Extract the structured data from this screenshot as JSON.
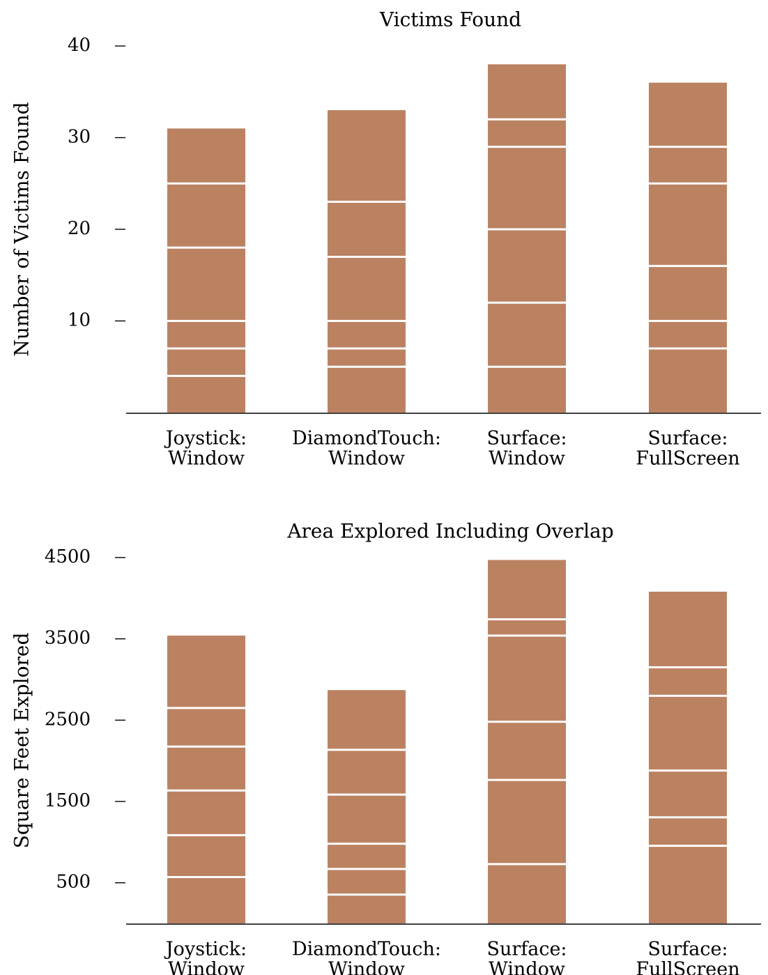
{
  "chart_data": [
    {
      "type": "bar",
      "stacked": true,
      "title": "Victims Found",
      "ylabel": "Number of Victims Found",
      "xlabel": "",
      "ylim": [
        0,
        40
      ],
      "yticks": [
        10,
        20,
        30,
        40
      ],
      "grid": false,
      "bar_color": "#bb8262",
      "separator_color": "#ffffff",
      "categories": [
        {
          "line1": "Joystick:",
          "line2": "Window"
        },
        {
          "line1": "DiamondTouch:",
          "line2": "Window"
        },
        {
          "line1": "Surface:",
          "line2": "Window"
        },
        {
          "line1": "Surface:",
          "line2": "FullScreen"
        }
      ],
      "cumulative_boundaries": [
        [
          4,
          7,
          10,
          18,
          25,
          31
        ],
        [
          5,
          7,
          10,
          17,
          23,
          33
        ],
        [
          5,
          12,
          20,
          29,
          32,
          38
        ],
        [
          7,
          10,
          16,
          25,
          29,
          36
        ]
      ]
    },
    {
      "type": "bar",
      "stacked": true,
      "title": "Area Explored Including Overlap",
      "ylabel": "Square Feet Explored",
      "xlabel": "",
      "ylim": [
        0,
        4500
      ],
      "yticks": [
        500,
        1500,
        2500,
        3500,
        4500
      ],
      "grid": false,
      "bar_color": "#bb8262",
      "separator_color": "#ffffff",
      "categories": [
        {
          "line1": "Joystick:",
          "line2": "Window"
        },
        {
          "line1": "DiamondTouch:",
          "line2": "Window"
        },
        {
          "line1": "Surface:",
          "line2": "Window"
        },
        {
          "line1": "Surface:",
          "line2": "FullScreen"
        }
      ],
      "cumulative_boundaries": [
        [
          570,
          1085,
          1635,
          2175,
          2650,
          3540
        ],
        [
          355,
          670,
          980,
          1585,
          2135,
          2870
        ],
        [
          730,
          1765,
          2480,
          3540,
          3740,
          4470
        ],
        [
          955,
          1305,
          1880,
          2800,
          3150,
          4080
        ]
      ]
    }
  ]
}
